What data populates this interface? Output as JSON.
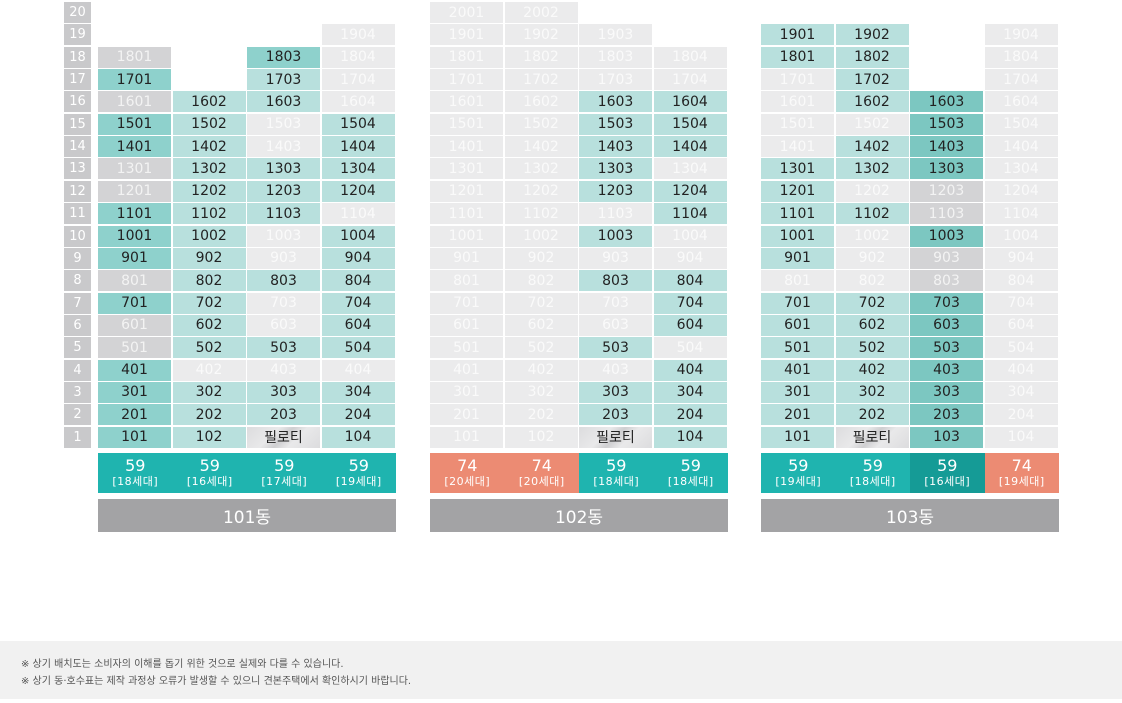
{
  "colors": {
    "unit_light": "#b8e0dd",
    "unit_medium": "#8ed1cc",
    "unit_dark": "#7cc7c1",
    "unit_gray": "#d3d3d5",
    "unit_pale": "#ebebec",
    "floor_label": "#c9c9cb",
    "type_teal": "#1fb4af",
    "type_teal_dark": "#159b96",
    "type_salmon": "#ec8b73",
    "building_label": "#a3a3a5"
  },
  "floors": [
    "20",
    "19",
    "18",
    "17",
    "16",
    "15",
    "14",
    "13",
    "12",
    "11",
    "10",
    "9",
    "8",
    "7",
    "6",
    "5",
    "4",
    "3",
    "2",
    "1"
  ],
  "buildings": [
    {
      "name": "101동",
      "types": [
        {
          "size": "59",
          "units": "[18세대]",
          "color": "teal"
        },
        {
          "size": "59",
          "units": "[16세대]",
          "color": "teal"
        },
        {
          "size": "59",
          "units": "[17세대]",
          "color": "teal"
        },
        {
          "size": "59",
          "units": "[19세대]",
          "color": "teal"
        }
      ],
      "rows": [
        [
          "",
          "",
          "",
          ""
        ],
        [
          "",
          "",
          "",
          {
            "t": "1904",
            "s": "pale"
          }
        ],
        [
          {
            "t": "1801",
            "s": "gray"
          },
          "",
          {
            "t": "1803",
            "s": "medium"
          },
          {
            "t": "1804",
            "s": "pale"
          }
        ],
        [
          {
            "t": "1701",
            "s": "medium"
          },
          "",
          {
            "t": "1703",
            "s": "light"
          },
          {
            "t": "1704",
            "s": "pale"
          }
        ],
        [
          {
            "t": "1601",
            "s": "gray"
          },
          {
            "t": "1602",
            "s": "light"
          },
          {
            "t": "1603",
            "s": "light"
          },
          {
            "t": "1604",
            "s": "pale"
          }
        ],
        [
          {
            "t": "1501",
            "s": "medium"
          },
          {
            "t": "1502",
            "s": "light"
          },
          {
            "t": "1503",
            "s": "pale"
          },
          {
            "t": "1504",
            "s": "light"
          }
        ],
        [
          {
            "t": "1401",
            "s": "medium"
          },
          {
            "t": "1402",
            "s": "light"
          },
          {
            "t": "1403",
            "s": "pale"
          },
          {
            "t": "1404",
            "s": "light"
          }
        ],
        [
          {
            "t": "1301",
            "s": "gray"
          },
          {
            "t": "1302",
            "s": "light"
          },
          {
            "t": "1303",
            "s": "light"
          },
          {
            "t": "1304",
            "s": "light"
          }
        ],
        [
          {
            "t": "1201",
            "s": "gray"
          },
          {
            "t": "1202",
            "s": "light"
          },
          {
            "t": "1203",
            "s": "light"
          },
          {
            "t": "1204",
            "s": "light"
          }
        ],
        [
          {
            "t": "1101",
            "s": "medium"
          },
          {
            "t": "1102",
            "s": "light"
          },
          {
            "t": "1103",
            "s": "light"
          },
          {
            "t": "1104",
            "s": "pale"
          }
        ],
        [
          {
            "t": "1001",
            "s": "medium"
          },
          {
            "t": "1002",
            "s": "light"
          },
          {
            "t": "1003",
            "s": "pale"
          },
          {
            "t": "1004",
            "s": "light"
          }
        ],
        [
          {
            "t": "901",
            "s": "medium"
          },
          {
            "t": "902",
            "s": "light"
          },
          {
            "t": "903",
            "s": "pale"
          },
          {
            "t": "904",
            "s": "light"
          }
        ],
        [
          {
            "t": "801",
            "s": "gray"
          },
          {
            "t": "802",
            "s": "light"
          },
          {
            "t": "803",
            "s": "light"
          },
          {
            "t": "804",
            "s": "light"
          }
        ],
        [
          {
            "t": "701",
            "s": "medium"
          },
          {
            "t": "702",
            "s": "light"
          },
          {
            "t": "703",
            "s": "pale"
          },
          {
            "t": "704",
            "s": "light"
          }
        ],
        [
          {
            "t": "601",
            "s": "gray"
          },
          {
            "t": "602",
            "s": "light"
          },
          {
            "t": "603",
            "s": "pale"
          },
          {
            "t": "604",
            "s": "light"
          }
        ],
        [
          {
            "t": "501",
            "s": "gray"
          },
          {
            "t": "502",
            "s": "light"
          },
          {
            "t": "503",
            "s": "light"
          },
          {
            "t": "504",
            "s": "light"
          }
        ],
        [
          {
            "t": "401",
            "s": "medium"
          },
          {
            "t": "402",
            "s": "pale"
          },
          {
            "t": "403",
            "s": "pale"
          },
          {
            "t": "404",
            "s": "pale"
          }
        ],
        [
          {
            "t": "301",
            "s": "medium"
          },
          {
            "t": "302",
            "s": "light"
          },
          {
            "t": "303",
            "s": "light"
          },
          {
            "t": "304",
            "s": "light"
          }
        ],
        [
          {
            "t": "201",
            "s": "medium"
          },
          {
            "t": "202",
            "s": "light"
          },
          {
            "t": "203",
            "s": "light"
          },
          {
            "t": "204",
            "s": "light"
          }
        ],
        [
          {
            "t": "101",
            "s": "medium"
          },
          {
            "t": "102",
            "s": "light"
          },
          {
            "t": "필로티",
            "s": "pilotis"
          },
          {
            "t": "104",
            "s": "light"
          }
        ]
      ]
    },
    {
      "name": "102동",
      "types": [
        {
          "size": "74",
          "units": "[20세대]",
          "color": "salmon"
        },
        {
          "size": "74",
          "units": "[20세대]",
          "color": "salmon"
        },
        {
          "size": "59",
          "units": "[18세대]",
          "color": "teal"
        },
        {
          "size": "59",
          "units": "[18세대]",
          "color": "teal"
        }
      ],
      "rows": [
        [
          {
            "t": "2001",
            "s": "pale"
          },
          {
            "t": "2002",
            "s": "pale"
          },
          "",
          ""
        ],
        [
          {
            "t": "1901",
            "s": "pale"
          },
          {
            "t": "1902",
            "s": "pale"
          },
          {
            "t": "1903",
            "s": "pale"
          },
          ""
        ],
        [
          {
            "t": "1801",
            "s": "pale"
          },
          {
            "t": "1802",
            "s": "pale"
          },
          {
            "t": "1803",
            "s": "pale"
          },
          {
            "t": "1804",
            "s": "pale"
          }
        ],
        [
          {
            "t": "1701",
            "s": "pale"
          },
          {
            "t": "1702",
            "s": "pale"
          },
          {
            "t": "1703",
            "s": "pale"
          },
          {
            "t": "1704",
            "s": "pale"
          }
        ],
        [
          {
            "t": "1601",
            "s": "pale"
          },
          {
            "t": "1602",
            "s": "pale"
          },
          {
            "t": "1603",
            "s": "light"
          },
          {
            "t": "1604",
            "s": "light"
          }
        ],
        [
          {
            "t": "1501",
            "s": "pale"
          },
          {
            "t": "1502",
            "s": "pale"
          },
          {
            "t": "1503",
            "s": "light"
          },
          {
            "t": "1504",
            "s": "light"
          }
        ],
        [
          {
            "t": "1401",
            "s": "pale"
          },
          {
            "t": "1402",
            "s": "pale"
          },
          {
            "t": "1403",
            "s": "light"
          },
          {
            "t": "1404",
            "s": "light"
          }
        ],
        [
          {
            "t": "1301",
            "s": "pale"
          },
          {
            "t": "1302",
            "s": "pale"
          },
          {
            "t": "1303",
            "s": "light"
          },
          {
            "t": "1304",
            "s": "pale"
          }
        ],
        [
          {
            "t": "1201",
            "s": "pale"
          },
          {
            "t": "1202",
            "s": "pale"
          },
          {
            "t": "1203",
            "s": "light"
          },
          {
            "t": "1204",
            "s": "light"
          }
        ],
        [
          {
            "t": "1101",
            "s": "pale"
          },
          {
            "t": "1102",
            "s": "pale"
          },
          {
            "t": "1103",
            "s": "pale"
          },
          {
            "t": "1104",
            "s": "light"
          }
        ],
        [
          {
            "t": "1001",
            "s": "pale"
          },
          {
            "t": "1002",
            "s": "pale"
          },
          {
            "t": "1003",
            "s": "light"
          },
          {
            "t": "1004",
            "s": "pale"
          }
        ],
        [
          {
            "t": "901",
            "s": "pale"
          },
          {
            "t": "902",
            "s": "pale"
          },
          {
            "t": "903",
            "s": "pale"
          },
          {
            "t": "904",
            "s": "pale"
          }
        ],
        [
          {
            "t": "801",
            "s": "pale"
          },
          {
            "t": "802",
            "s": "pale"
          },
          {
            "t": "803",
            "s": "light"
          },
          {
            "t": "804",
            "s": "light"
          }
        ],
        [
          {
            "t": "701",
            "s": "pale"
          },
          {
            "t": "702",
            "s": "pale"
          },
          {
            "t": "703",
            "s": "pale"
          },
          {
            "t": "704",
            "s": "light"
          }
        ],
        [
          {
            "t": "601",
            "s": "pale"
          },
          {
            "t": "602",
            "s": "pale"
          },
          {
            "t": "603",
            "s": "pale"
          },
          {
            "t": "604",
            "s": "light"
          }
        ],
        [
          {
            "t": "501",
            "s": "pale"
          },
          {
            "t": "502",
            "s": "pale"
          },
          {
            "t": "503",
            "s": "light"
          },
          {
            "t": "504",
            "s": "pale"
          }
        ],
        [
          {
            "t": "401",
            "s": "pale"
          },
          {
            "t": "402",
            "s": "pale"
          },
          {
            "t": "403",
            "s": "pale"
          },
          {
            "t": "404",
            "s": "light"
          }
        ],
        [
          {
            "t": "301",
            "s": "pale"
          },
          {
            "t": "302",
            "s": "pale"
          },
          {
            "t": "303",
            "s": "light"
          },
          {
            "t": "304",
            "s": "light"
          }
        ],
        [
          {
            "t": "201",
            "s": "pale"
          },
          {
            "t": "202",
            "s": "pale"
          },
          {
            "t": "203",
            "s": "light"
          },
          {
            "t": "204",
            "s": "light"
          }
        ],
        [
          {
            "t": "101",
            "s": "pale"
          },
          {
            "t": "102",
            "s": "pale"
          },
          {
            "t": "필로티",
            "s": "pilotis"
          },
          {
            "t": "104",
            "s": "light"
          }
        ]
      ]
    },
    {
      "name": "103동",
      "types": [
        {
          "size": "59",
          "units": "[19세대]",
          "color": "teal"
        },
        {
          "size": "59",
          "units": "[18세대]",
          "color": "teal"
        },
        {
          "size": "59",
          "units": "[16세대]",
          "color": "teal_dark"
        },
        {
          "size": "74",
          "units": "[19세대]",
          "color": "salmon"
        }
      ],
      "rows": [
        [
          "",
          "",
          "",
          ""
        ],
        [
          {
            "t": "1901",
            "s": "light"
          },
          {
            "t": "1902",
            "s": "light"
          },
          "",
          {
            "t": "1904",
            "s": "pale"
          }
        ],
        [
          {
            "t": "1801",
            "s": "light"
          },
          {
            "t": "1802",
            "s": "light"
          },
          "",
          {
            "t": "1804",
            "s": "pale"
          }
        ],
        [
          {
            "t": "1701",
            "s": "pale"
          },
          {
            "t": "1702",
            "s": "light"
          },
          "",
          {
            "t": "1704",
            "s": "pale"
          }
        ],
        [
          {
            "t": "1601",
            "s": "pale"
          },
          {
            "t": "1602",
            "s": "light"
          },
          {
            "t": "1603",
            "s": "dark"
          },
          {
            "t": "1604",
            "s": "pale"
          }
        ],
        [
          {
            "t": "1501",
            "s": "pale"
          },
          {
            "t": "1502",
            "s": "pale"
          },
          {
            "t": "1503",
            "s": "dark"
          },
          {
            "t": "1504",
            "s": "pale"
          }
        ],
        [
          {
            "t": "1401",
            "s": "pale"
          },
          {
            "t": "1402",
            "s": "light"
          },
          {
            "t": "1403",
            "s": "dark"
          },
          {
            "t": "1404",
            "s": "pale"
          }
        ],
        [
          {
            "t": "1301",
            "s": "light"
          },
          {
            "t": "1302",
            "s": "light"
          },
          {
            "t": "1303",
            "s": "dark"
          },
          {
            "t": "1304",
            "s": "pale"
          }
        ],
        [
          {
            "t": "1201",
            "s": "light"
          },
          {
            "t": "1202",
            "s": "pale"
          },
          {
            "t": "1203",
            "s": "gray"
          },
          {
            "t": "1204",
            "s": "pale"
          }
        ],
        [
          {
            "t": "1101",
            "s": "light"
          },
          {
            "t": "1102",
            "s": "light"
          },
          {
            "t": "1103",
            "s": "gray"
          },
          {
            "t": "1104",
            "s": "pale"
          }
        ],
        [
          {
            "t": "1001",
            "s": "light"
          },
          {
            "t": "1002",
            "s": "pale"
          },
          {
            "t": "1003",
            "s": "dark"
          },
          {
            "t": "1004",
            "s": "pale"
          }
        ],
        [
          {
            "t": "901",
            "s": "light"
          },
          {
            "t": "902",
            "s": "pale"
          },
          {
            "t": "903",
            "s": "gray"
          },
          {
            "t": "904",
            "s": "pale"
          }
        ],
        [
          {
            "t": "801",
            "s": "pale"
          },
          {
            "t": "802",
            "s": "pale"
          },
          {
            "t": "803",
            "s": "gray"
          },
          {
            "t": "804",
            "s": "pale"
          }
        ],
        [
          {
            "t": "701",
            "s": "light"
          },
          {
            "t": "702",
            "s": "light"
          },
          {
            "t": "703",
            "s": "dark"
          },
          {
            "t": "704",
            "s": "pale"
          }
        ],
        [
          {
            "t": "601",
            "s": "light"
          },
          {
            "t": "602",
            "s": "light"
          },
          {
            "t": "603",
            "s": "dark"
          },
          {
            "t": "604",
            "s": "pale"
          }
        ],
        [
          {
            "t": "501",
            "s": "light"
          },
          {
            "t": "502",
            "s": "light"
          },
          {
            "t": "503",
            "s": "dark"
          },
          {
            "t": "504",
            "s": "pale"
          }
        ],
        [
          {
            "t": "401",
            "s": "light"
          },
          {
            "t": "402",
            "s": "light"
          },
          {
            "t": "403",
            "s": "dark"
          },
          {
            "t": "404",
            "s": "pale"
          }
        ],
        [
          {
            "t": "301",
            "s": "light"
          },
          {
            "t": "302",
            "s": "light"
          },
          {
            "t": "303",
            "s": "dark"
          },
          {
            "t": "304",
            "s": "pale"
          }
        ],
        [
          {
            "t": "201",
            "s": "light"
          },
          {
            "t": "202",
            "s": "light"
          },
          {
            "t": "203",
            "s": "dark"
          },
          {
            "t": "204",
            "s": "pale"
          }
        ],
        [
          {
            "t": "101",
            "s": "light"
          },
          {
            "t": "필로티",
            "s": "pilotis"
          },
          {
            "t": "103",
            "s": "dark"
          },
          {
            "t": "104",
            "s": "pale"
          }
        ]
      ]
    }
  ],
  "notes": [
    "※ 상기 배치도는 소비자의 이해를 돕기 위한 것으로 실제와 다를 수 있습니다.",
    "※ 상기 동·호수표는 제작 과정상 오류가 발생할 수 있으니 견본주택에서 확인하시기 바랍니다."
  ]
}
